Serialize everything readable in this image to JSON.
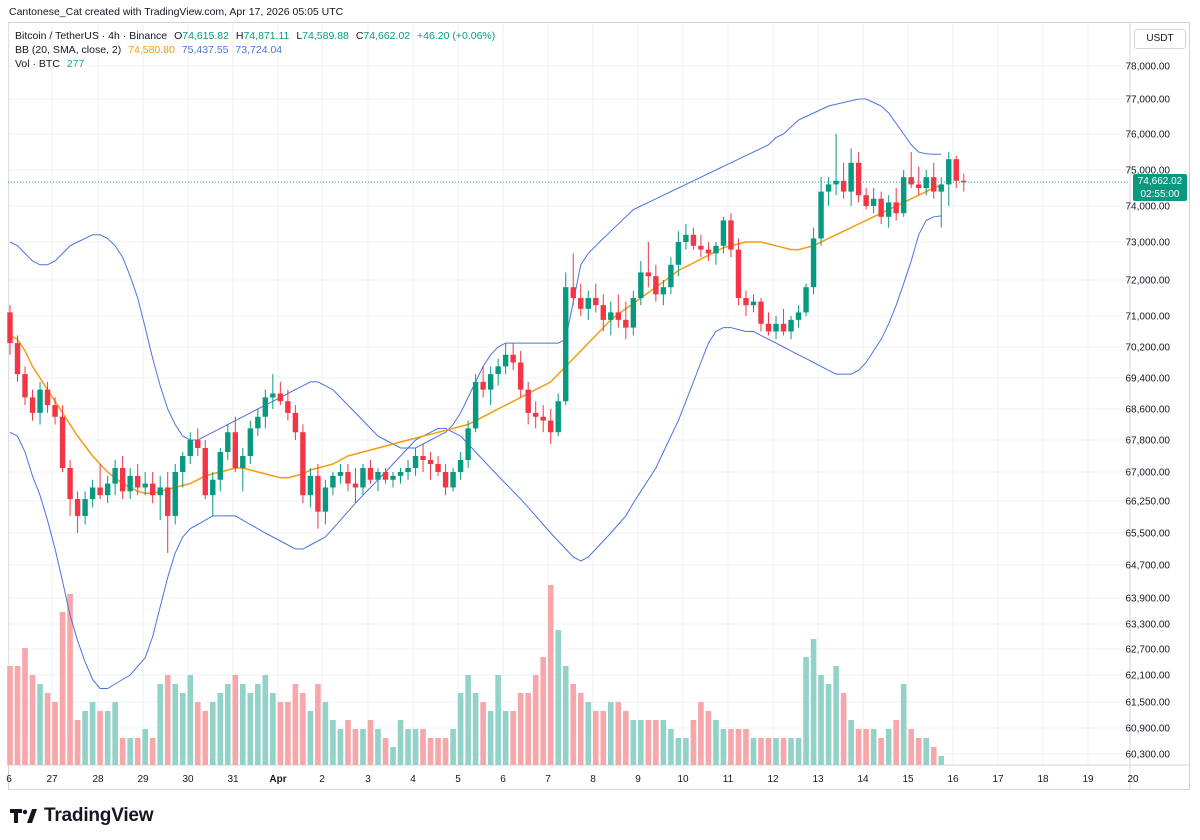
{
  "header": {
    "credit": "Cantonese_Cat created with TradingView.com, Apr 17, 2026 05:05 UTC"
  },
  "legend": {
    "symbol": "Bitcoin / TetherUS · 4h · Binance",
    "open_label": "O",
    "open": "74,615.82",
    "high_label": "H",
    "high": "74,871.11",
    "low_label": "L",
    "low": "74,589.88",
    "close_label": "C",
    "close": "74,662.02",
    "change": "+46.20 (+0.06%)",
    "bb_label": "BB (20, SMA, close, 2)",
    "bb_basis": "74,580.80",
    "bb_upper": "75,437.55",
    "bb_lower": "73,724.04",
    "vol_label": "Vol · BTC",
    "vol_value": "277"
  },
  "price_scale": {
    "unit": "USDT",
    "last_price": "74,662.02",
    "countdown": "02:55:00"
  },
  "brand": {
    "name": "TradingView"
  },
  "colors": {
    "up": "#089981",
    "down": "#f23645",
    "up_vol": "#93d2c9",
    "down_vol": "#f7a6a9",
    "bb_band": "#4c74e0",
    "bb_basis": "#f39c12",
    "grid": "#eef0f3",
    "text": "#131722"
  },
  "chart_data": {
    "type": "candlestick",
    "interval": "4h",
    "y_ticks": [
      78000,
      77000,
      76000,
      75000,
      74000,
      73000,
      72000,
      71000,
      70200,
      69400,
      68600,
      67800,
      67000,
      66250,
      65500,
      64700,
      63900,
      63300,
      62700,
      62100,
      61500,
      60900,
      60300
    ],
    "y_tick_labels": [
      "78,000.00",
      "77,000.00",
      "76,000.00",
      "75,000.00",
      "74,000.00",
      "73,000.00",
      "72,000.00",
      "71,000.00",
      "70,200.00",
      "69,400.00",
      "68,600.00",
      "67,800.00",
      "67,000.00",
      "66,250.00",
      "65,500.00",
      "64,700.00",
      "63,900.00",
      "63,300.00",
      "62,700.00",
      "62,100.00",
      "61,500.00",
      "60,900.00",
      "60,300.00"
    ],
    "x_tick_labels": [
      "6",
      "27",
      "28",
      "29",
      "30",
      "31",
      "Apr",
      "2",
      "3",
      "4",
      "5",
      "6",
      "7",
      "8",
      "9",
      "10",
      "11",
      "12",
      "13",
      "14",
      "15",
      "16",
      "17",
      "18",
      "19",
      "20"
    ],
    "candles_ohlc": [
      [
        71100,
        71300,
        70000,
        70300
      ],
      [
        70300,
        70500,
        69300,
        69500
      ],
      [
        69500,
        69700,
        68700,
        68900
      ],
      [
        68900,
        69100,
        68300,
        68500
      ],
      [
        68500,
        69300,
        68200,
        69100
      ],
      [
        69100,
        69300,
        68500,
        68700
      ],
      [
        68700,
        68900,
        68200,
        68400
      ],
      [
        68400,
        68700,
        67000,
        67100
      ],
      [
        67100,
        67300,
        65900,
        66300
      ],
      [
        66300,
        66500,
        65500,
        65900
      ],
      [
        65900,
        66500,
        65700,
        66300
      ],
      [
        66300,
        66800,
        66100,
        66600
      ],
      [
        66600,
        67200,
        66300,
        66400
      ],
      [
        66400,
        66900,
        66200,
        66700
      ],
      [
        66700,
        67300,
        66400,
        67100
      ],
      [
        67100,
        67400,
        66300,
        66500
      ],
      [
        66500,
        67100,
        66300,
        66900
      ],
      [
        66900,
        67200,
        66400,
        66600
      ],
      [
        66600,
        67000,
        66400,
        66700
      ],
      [
        66700,
        67000,
        66200,
        66400
      ],
      [
        66400,
        66900,
        65800,
        66600
      ],
      [
        66600,
        67000,
        65000,
        65900
      ],
      [
        65900,
        67200,
        65700,
        67000
      ],
      [
        67000,
        67500,
        66600,
        67400
      ],
      [
        67400,
        68000,
        67200,
        67800
      ],
      [
        67800,
        68100,
        67400,
        67600
      ],
      [
        67600,
        67800,
        66300,
        66400
      ],
      [
        66400,
        67000,
        65900,
        66800
      ],
      [
        66800,
        67600,
        66500,
        67500
      ],
      [
        67500,
        68200,
        67300,
        68000
      ],
      [
        68000,
        68400,
        67000,
        67100
      ],
      [
        67100,
        67600,
        66500,
        67400
      ],
      [
        67400,
        68300,
        67200,
        68100
      ],
      [
        68100,
        68600,
        67900,
        68400
      ],
      [
        68400,
        69100,
        68100,
        68900
      ],
      [
        68900,
        69500,
        68600,
        69000
      ],
      [
        69000,
        69300,
        68700,
        68800
      ],
      [
        68800,
        69100,
        68300,
        68500
      ],
      [
        68500,
        68700,
        67800,
        68000
      ],
      [
        68000,
        68200,
        66200,
        66400
      ],
      [
        66400,
        67100,
        66100,
        66900
      ],
      [
        66900,
        67200,
        65600,
        66000
      ],
      [
        66000,
        66800,
        65700,
        66600
      ],
      [
        66600,
        67000,
        66400,
        66900
      ],
      [
        66900,
        67200,
        66700,
        67000
      ],
      [
        67000,
        67200,
        66500,
        66700
      ],
      [
        66700,
        67100,
        66200,
        66600
      ],
      [
        66600,
        67200,
        66400,
        67100
      ],
      [
        67100,
        67300,
        66700,
        66800
      ],
      [
        66800,
        67100,
        66500,
        67000
      ],
      [
        67000,
        67100,
        66700,
        66800
      ],
      [
        66800,
        67000,
        66600,
        66900
      ],
      [
        66900,
        67100,
        66700,
        67000
      ],
      [
        67000,
        67300,
        66800,
        67100
      ],
      [
        67100,
        67600,
        66900,
        67400
      ],
      [
        67400,
        67700,
        67000,
        67300
      ],
      [
        67300,
        67500,
        66800,
        67200
      ],
      [
        67200,
        67400,
        66900,
        67000
      ],
      [
        67000,
        67200,
        66400,
        66600
      ],
      [
        66600,
        67100,
        66500,
        67000
      ],
      [
        67000,
        67500,
        66800,
        67300
      ],
      [
        67300,
        68300,
        67100,
        68100
      ],
      [
        68100,
        69500,
        68000,
        69300
      ],
      [
        69300,
        69700,
        68900,
        69100
      ],
      [
        69100,
        69700,
        68700,
        69500
      ],
      [
        69500,
        69900,
        69200,
        69700
      ],
      [
        69700,
        70300,
        69500,
        70000
      ],
      [
        70000,
        70300,
        69600,
        69800
      ],
      [
        69800,
        70100,
        68900,
        69100
      ],
      [
        69100,
        69300,
        68200,
        68500
      ],
      [
        68500,
        68800,
        68100,
        68400
      ],
      [
        68400,
        68700,
        68000,
        68300
      ],
      [
        68300,
        68600,
        67700,
        68000
      ],
      [
        68000,
        69000,
        67900,
        68800
      ],
      [
        68800,
        72200,
        68700,
        71800
      ],
      [
        71800,
        72700,
        71300,
        71500
      ],
      [
        71500,
        71900,
        71000,
        71200
      ],
      [
        71200,
        71700,
        70900,
        71500
      ],
      [
        71500,
        71900,
        71100,
        71300
      ],
      [
        71300,
        71600,
        70600,
        70900
      ],
      [
        70900,
        71400,
        70500,
        71100
      ],
      [
        71100,
        71600,
        70700,
        70900
      ],
      [
        70900,
        71400,
        70400,
        70700
      ],
      [
        70700,
        71700,
        70500,
        71500
      ],
      [
        71500,
        72500,
        71300,
        72200
      ],
      [
        72200,
        73000,
        71800,
        72100
      ],
      [
        72100,
        72400,
        71400,
        71600
      ],
      [
        71600,
        72000,
        71300,
        71800
      ],
      [
        71800,
        72600,
        71600,
        72400
      ],
      [
        72400,
        73300,
        72100,
        73000
      ],
      [
        73000,
        73500,
        72800,
        73200
      ],
      [
        73200,
        73400,
        72800,
        72900
      ],
      [
        72900,
        73200,
        72600,
        72800
      ],
      [
        72800,
        73000,
        72500,
        72700
      ],
      [
        72700,
        73000,
        72400,
        72900
      ],
      [
        72900,
        73700,
        72700,
        73600
      ],
      [
        73600,
        73800,
        72600,
        72800
      ],
      [
        72800,
        73100,
        71300,
        71500
      ],
      [
        71500,
        71700,
        71000,
        71300
      ],
      [
        71300,
        71600,
        71100,
        71400
      ],
      [
        71400,
        71500,
        70600,
        70800
      ],
      [
        70800,
        71100,
        70500,
        70600
      ],
      [
        70600,
        71000,
        70400,
        70800
      ],
      [
        70800,
        71200,
        70500,
        70600
      ],
      [
        70600,
        71000,
        70400,
        70900
      ],
      [
        70900,
        71300,
        70700,
        71100
      ],
      [
        71100,
        71900,
        71000,
        71800
      ],
      [
        71800,
        73400,
        71600,
        73100
      ],
      [
        73100,
        74800,
        72900,
        74400
      ],
      [
        74400,
        74800,
        74000,
        74600
      ],
      [
        74600,
        76000,
        74300,
        74700
      ],
      [
        74700,
        75200,
        74200,
        74400
      ],
      [
        74400,
        75600,
        74000,
        75200
      ],
      [
        75200,
        75500,
        74100,
        74300
      ],
      [
        74300,
        74500,
        73900,
        74000
      ],
      [
        74000,
        74500,
        73800,
        74200
      ],
      [
        74200,
        74400,
        73500,
        73700
      ],
      [
        73700,
        74300,
        73400,
        74100
      ],
      [
        74100,
        74500,
        73600,
        73800
      ],
      [
        73800,
        75000,
        73700,
        74800
      ],
      [
        74800,
        75500,
        74500,
        74600
      ],
      [
        74600,
        75100,
        74300,
        74500
      ],
      [
        74500,
        75000,
        74300,
        74800
      ],
      [
        74800,
        75200,
        74200,
        74400
      ],
      [
        74400,
        74800,
        73400,
        74600
      ],
      [
        74600,
        75500,
        74000,
        75300
      ],
      [
        75300,
        75400,
        74500,
        74700
      ],
      [
        74700,
        74900,
        74400,
        74662
      ]
    ],
    "bb_basis": [
      70500,
      70400,
      70100,
      69700,
      69400,
      69100,
      68800,
      68500,
      68200,
      67900,
      67650,
      67400,
      67200,
      67000,
      66850,
      66700,
      66600,
      66500,
      66450,
      66450,
      66500,
      66550,
      66600,
      66650,
      66700,
      66800,
      66900,
      66950,
      67000,
      67050,
      67100,
      67100,
      67050,
      67000,
      66950,
      66900,
      66850,
      66850,
      66900,
      66950,
      67050,
      67100,
      67150,
      67200,
      67300,
      67400,
      67450,
      67500,
      67550,
      67600,
      67650,
      67700,
      67750,
      67800,
      67850,
      67900,
      67950,
      68000,
      68050,
      68100,
      68150,
      68200,
      68300,
      68400,
      68500,
      68600,
      68700,
      68800,
      68900,
      69000,
      69100,
      69200,
      69300,
      69500,
      69700,
      69900,
      70100,
      70300,
      70500,
      70700,
      70900,
      71050,
      71200,
      71350,
      71500,
      71650,
      71800,
      71950,
      72100,
      72250,
      72350,
      72450,
      72550,
      72650,
      72750,
      72850,
      72900,
      72950,
      73000,
      73000,
      73000,
      72950,
      72900,
      72850,
      72800,
      72800,
      72850,
      72900,
      73000,
      73100,
      73200,
      73300,
      73400,
      73500,
      73600,
      73700,
      73800,
      73900,
      74000,
      74100,
      74200,
      74300,
      74400,
      74500,
      74580
    ],
    "bb_upper": [
      73000,
      72900,
      72700,
      72500,
      72400,
      72400,
      72500,
      72700,
      72900,
      73000,
      73100,
      73200,
      73200,
      73100,
      72900,
      72600,
      72100,
      71500,
      70700,
      69900,
      69200,
      68600,
      68200,
      67900,
      67800,
      67800,
      67900,
      68000,
      68100,
      68200,
      68300,
      68400,
      68500,
      68600,
      68700,
      68800,
      68900,
      69000,
      69100,
      69200,
      69300,
      69300,
      69200,
      69100,
      68900,
      68700,
      68500,
      68300,
      68100,
      67900,
      67800,
      67700,
      67600,
      67600,
      67600,
      67700,
      67800,
      67900,
      68000,
      68200,
      68500,
      68900,
      69300,
      69700,
      70000,
      70200,
      70300,
      70300,
      70300,
      70300,
      70300,
      70300,
      70300,
      70300,
      70400,
      71400,
      72400,
      72700,
      72900,
      73100,
      73300,
      73500,
      73700,
      73900,
      74000,
      74100,
      74200,
      74300,
      74400,
      74500,
      74600,
      74700,
      74800,
      74900,
      75000,
      75100,
      75200,
      75300,
      75400,
      75500,
      75600,
      75700,
      75900,
      76000,
      76200,
      76400,
      76500,
      76600,
      76700,
      76800,
      76850,
      76900,
      76950,
      77000,
      77000,
      76900,
      76800,
      76600,
      76300,
      76000,
      75700,
      75500,
      75450,
      75440,
      75437
    ],
    "bb_lower": [
      68000,
      67900,
      67500,
      66900,
      66400,
      65800,
      65100,
      64300,
      63500,
      62900,
      62400,
      62000,
      61800,
      61800,
      61900,
      62000,
      62100,
      62300,
      62500,
      63000,
      63700,
      64400,
      65000,
      65400,
      65600,
      65700,
      65800,
      65900,
      65900,
      65900,
      65900,
      65800,
      65700,
      65600,
      65500,
      65400,
      65300,
      65200,
      65100,
      65100,
      65200,
      65300,
      65400,
      65600,
      65800,
      66000,
      66200,
      66400,
      66600,
      66800,
      67000,
      67200,
      67400,
      67600,
      67800,
      67900,
      68000,
      68100,
      68100,
      68000,
      67900,
      67700,
      67500,
      67300,
      67100,
      66900,
      66700,
      66500,
      66300,
      66100,
      65900,
      65700,
      65500,
      65300,
      65100,
      64900,
      64800,
      64900,
      65100,
      65300,
      65500,
      65700,
      65900,
      66200,
      66500,
      66800,
      67100,
      67500,
      67900,
      68300,
      68800,
      69300,
      69800,
      70300,
      70600,
      70700,
      70700,
      70650,
      70600,
      70600,
      70500,
      70400,
      70300,
      70200,
      70100,
      70000,
      69900,
      69800,
      69700,
      69600,
      69500,
      69500,
      69500,
      69600,
      69800,
      70100,
      70400,
      70800,
      71300,
      71900,
      72500,
      73200,
      73600,
      73700,
      73724
    ],
    "volume_scale": [
      1.1,
      1.1,
      1.3,
      1.0,
      0.9,
      0.8,
      0.7,
      1.7,
      1.9,
      0.5,
      0.6,
      0.7,
      0.6,
      0.6,
      0.7,
      0.3,
      0.3,
      0.3,
      0.4,
      0.3,
      0.9,
      1.0,
      0.9,
      0.8,
      1.0,
      0.7,
      0.6,
      0.7,
      0.8,
      0.9,
      1.0,
      0.9,
      0.8,
      0.9,
      1.0,
      0.8,
      0.7,
      0.7,
      0.9,
      0.8,
      0.6,
      0.9,
      0.7,
      0.5,
      0.4,
      0.5,
      0.4,
      0.4,
      0.5,
      0.4,
      0.3,
      0.2,
      0.5,
      0.4,
      0.4,
      0.4,
      0.3,
      0.3,
      0.3,
      0.4,
      0.8,
      1.0,
      0.8,
      0.7,
      0.6,
      1.0,
      0.6,
      0.6,
      0.8,
      0.8,
      1.0,
      1.2,
      2.0,
      1.5,
      1.1,
      0.9,
      0.8,
      0.7,
      0.6,
      0.6,
      0.7,
      0.7,
      0.6,
      0.5,
      0.5,
      0.5,
      0.5,
      0.5,
      0.4,
      0.3,
      0.3,
      0.5,
      0.7,
      0.6,
      0.5,
      0.4,
      0.4,
      0.4,
      0.4,
      0.3,
      0.3,
      0.3,
      0.3,
      0.3,
      0.3,
      0.3,
      1.2,
      1.4,
      1.0,
      0.9,
      1.1,
      0.8,
      0.5,
      0.4,
      0.4,
      0.4,
      0.3,
      0.4,
      0.5,
      0.9,
      0.4,
      0.3,
      0.3,
      0.2,
      0.1
    ]
  }
}
